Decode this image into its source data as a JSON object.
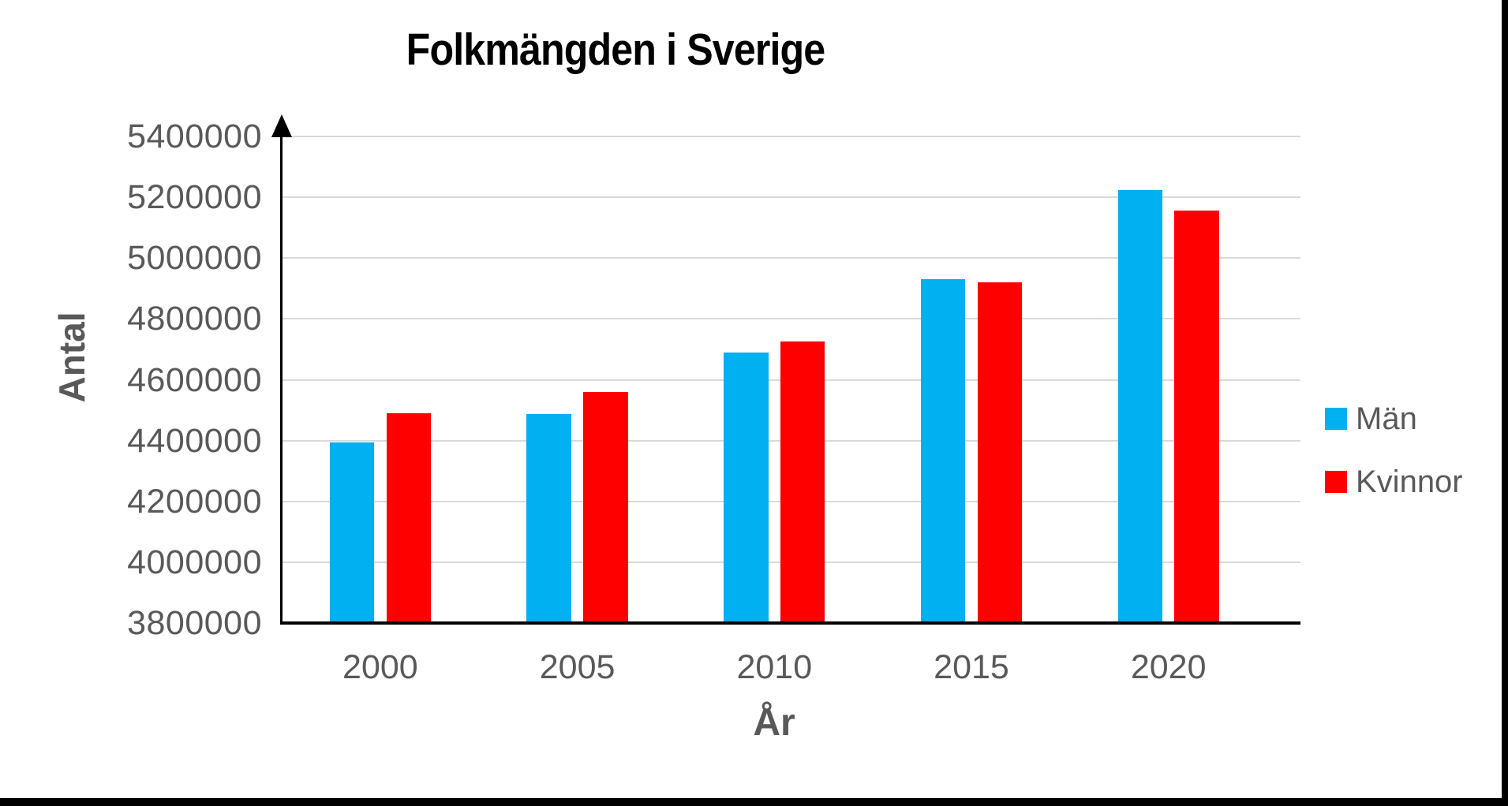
{
  "chart_data": {
    "type": "bar",
    "title": "Folkmängden i Sverige",
    "xlabel": "År",
    "ylabel": "Antal",
    "categories": [
      "2000",
      "2005",
      "2010",
      "2015",
      "2020"
    ],
    "series": [
      {
        "name": "Män",
        "color": "#00B0F0",
        "values": [
          4393000,
          4487000,
          4690000,
          4931000,
          5223000
        ]
      },
      {
        "name": "Kvinnor",
        "color": "#FF0000",
        "values": [
          4490000,
          4561000,
          4725000,
          4920000,
          5156000
        ]
      }
    ],
    "ylim": [
      3800000,
      5400000
    ],
    "ytick_step": 200000,
    "yticks": [
      "5400000",
      "5200000",
      "5000000",
      "4800000",
      "4600000",
      "4400000",
      "4200000",
      "4000000",
      "3800000"
    ],
    "grid": true,
    "legend_position": "right",
    "colors": {
      "gridline": "#D9D9D9",
      "axis": "#000000",
      "tick_label": "#595959",
      "title": "#000000"
    }
  }
}
